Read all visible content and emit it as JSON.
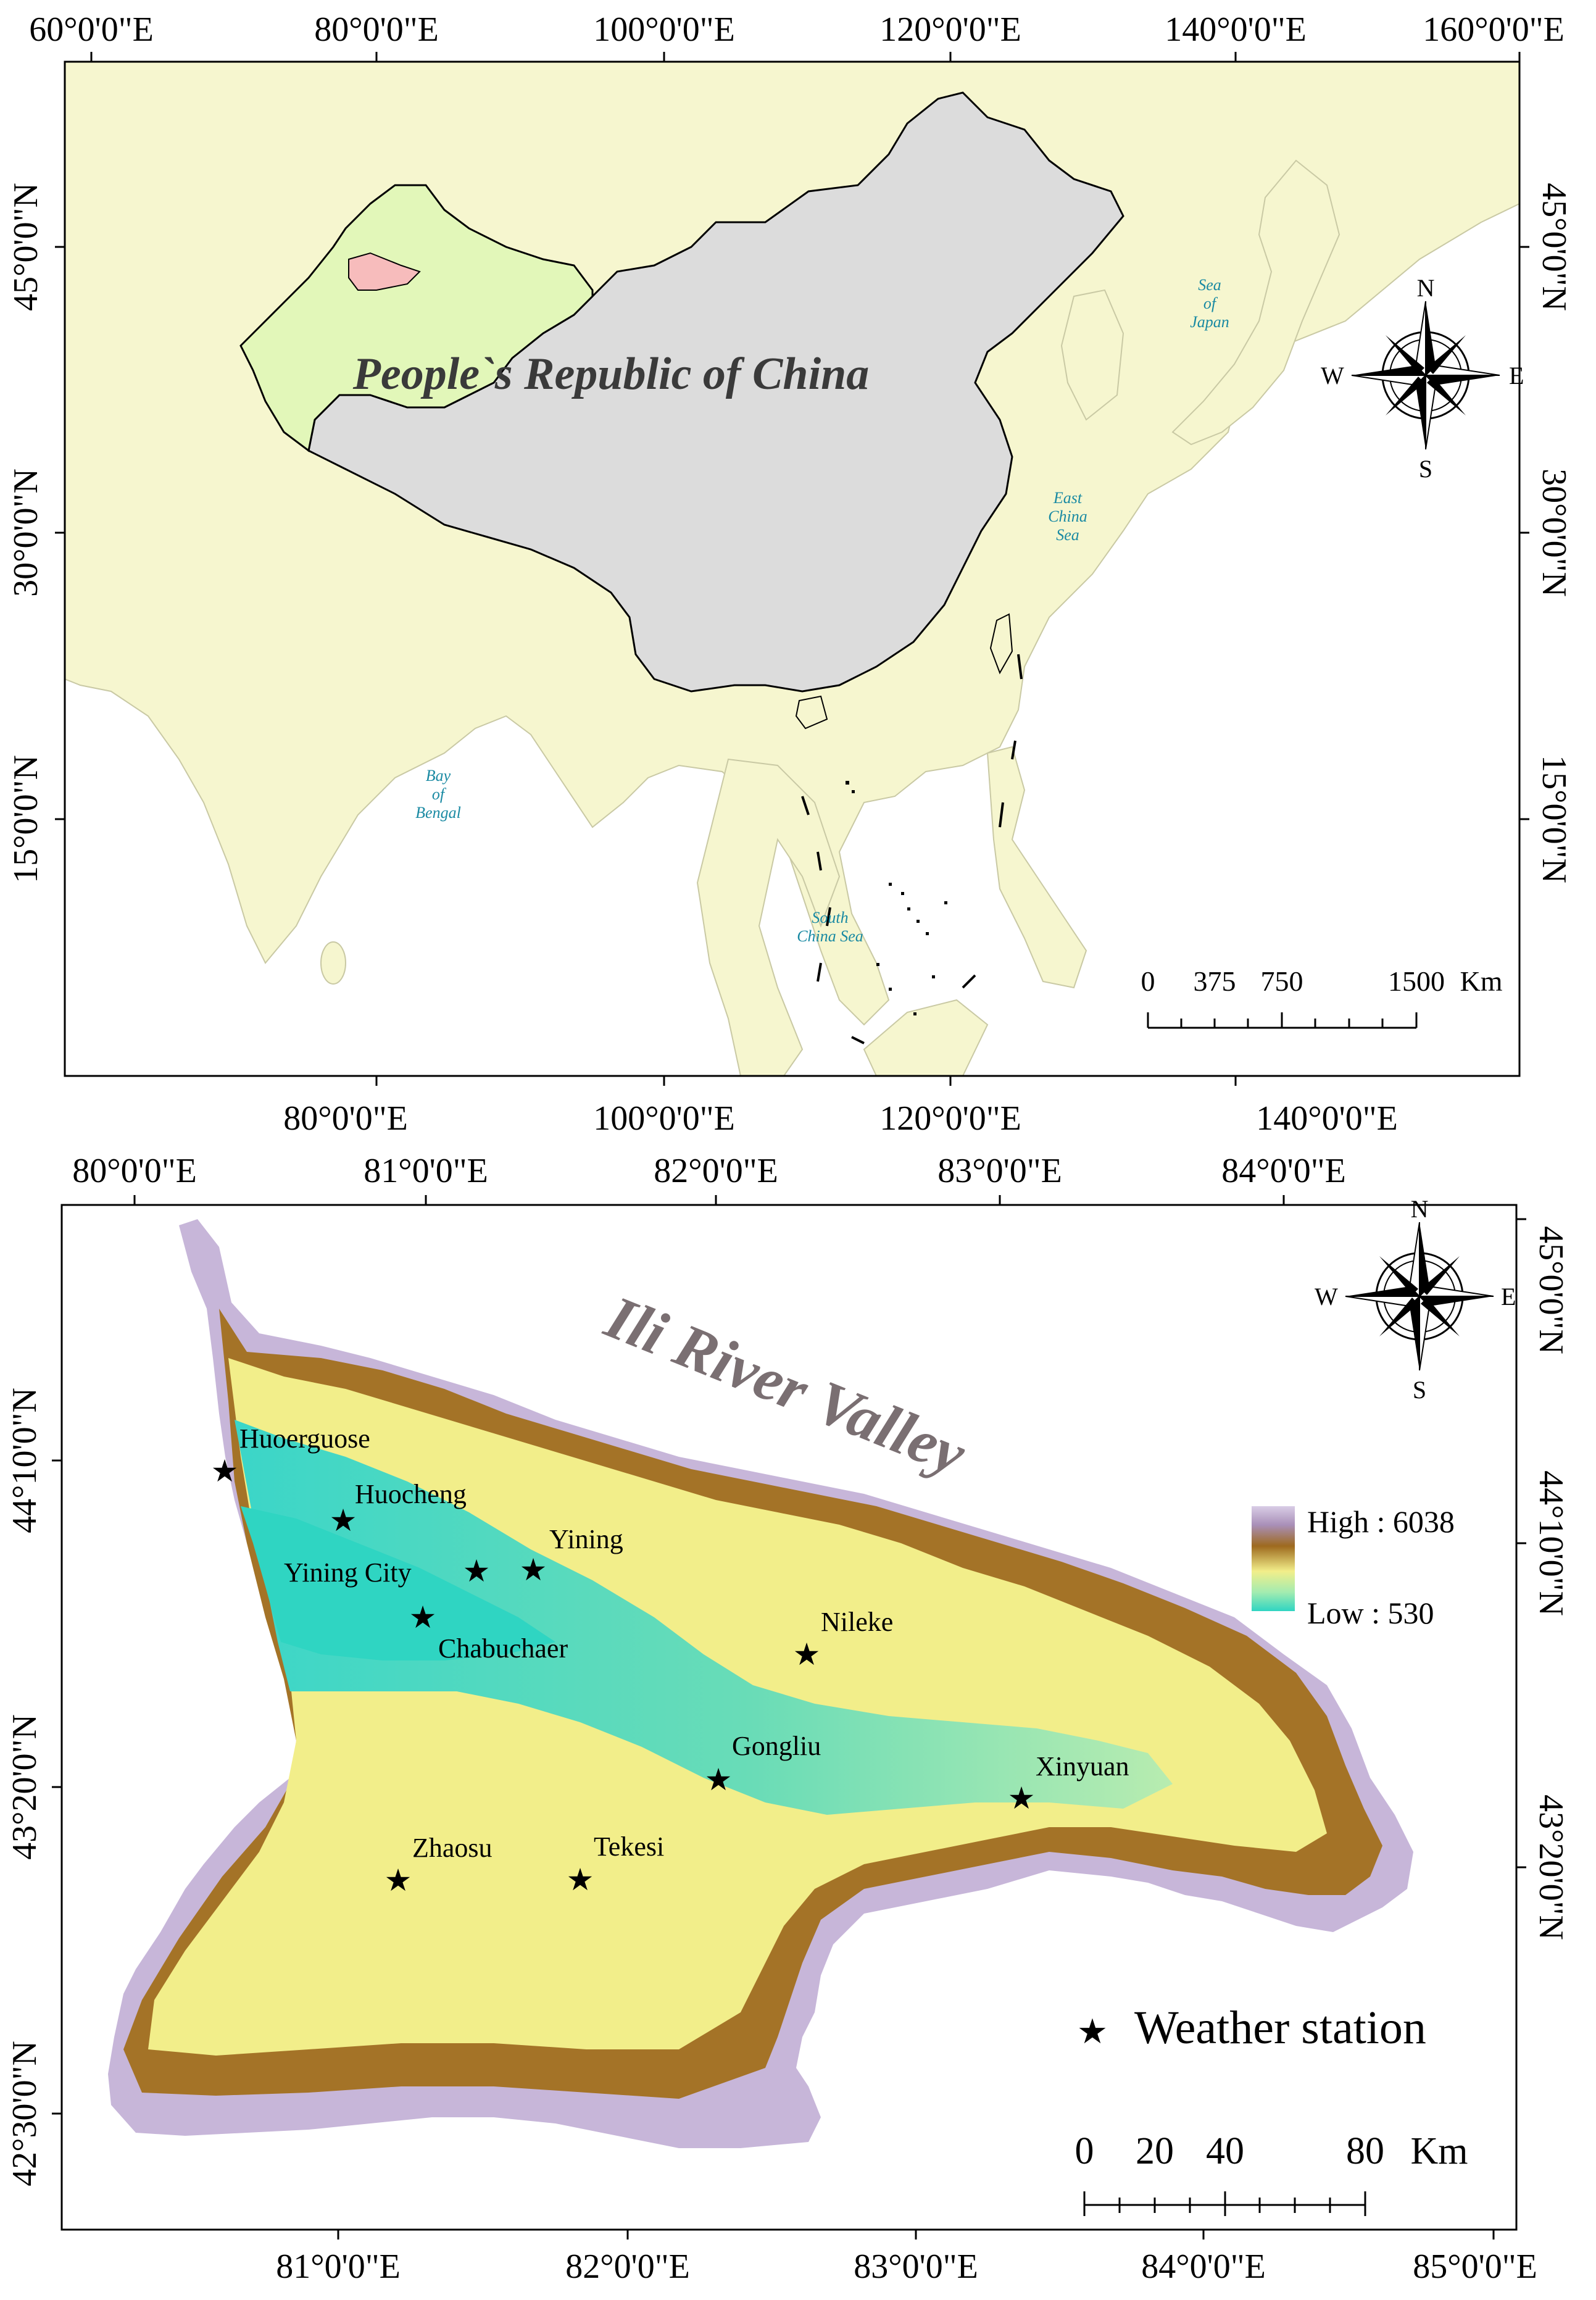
{
  "top_map": {
    "title": "People`s Republic of China",
    "top_ticks": [
      "60°0'0\"E",
      "80°0'0\"E",
      "100°0'0\"E",
      "120°0'0\"E",
      "140°0'0\"E",
      "160°0'0\"E"
    ],
    "bottom_ticks": [
      "80°0'0\"E",
      "100°0'0\"E",
      "120°0'0\"E",
      "140°0'0\"E"
    ],
    "left_ticks": [
      "45°0'0\"N",
      "30°0'0\"N",
      "15°0'0\"N"
    ],
    "right_ticks": [
      "45°0'0\"N",
      "30°0'0\"N",
      "15°0'0\"N"
    ],
    "seas": [
      {
        "lines": [
          "Sea",
          "of",
          "Japan"
        ]
      },
      {
        "lines": [
          "East",
          "China",
          "Sea"
        ]
      },
      {
        "lines": [
          "Bay",
          "of",
          "Bengal"
        ]
      },
      {
        "lines": [
          "South",
          "China Sea"
        ]
      }
    ],
    "scale": {
      "labels": [
        "0",
        "375",
        "750",
        "1500"
      ],
      "unit": "Km"
    },
    "compass": {
      "n": "N",
      "s": "S",
      "e": "E",
      "w": "W"
    }
  },
  "bottom_map": {
    "title": "Ili River Valley",
    "top_ticks": [
      "80°0'0\"E",
      "81°0'0\"E",
      "82°0'0\"E",
      "83°0'0\"E",
      "84°0'0\"E"
    ],
    "bottom_ticks": [
      "81°0'0\"E",
      "82°0'0\"E",
      "83°0'0\"E",
      "84°0'0\"E",
      "85°0'0\"E"
    ],
    "left_ticks": [
      "44°10'0\"N",
      "43°20'0\"N",
      "42°30'0\"N"
    ],
    "right_ticks": [
      "45°0'0\"N",
      "44°10'0\"N",
      "43°20'0\"N"
    ],
    "legend": {
      "high": "High : 6038",
      "low": "Low : 530",
      "station": "Weather station"
    },
    "stations": [
      "Huoerguose",
      "Huocheng",
      "Yining",
      "Yining City",
      "Chabuchaer",
      "Nileke",
      "Gongliu",
      "Xinyuan",
      "Zhaosu",
      "Tekesi"
    ],
    "scale": {
      "labels": [
        "0",
        "20",
        "40",
        "80"
      ],
      "unit": "Km"
    },
    "compass": {
      "n": "N",
      "s": "S",
      "e": "E",
      "w": "W"
    }
  },
  "colors": {
    "land": "#f6f6cf",
    "china": "#dcdcdc",
    "xinjiang": "#e2f7b9",
    "ili": "#f7bcbc",
    "sea_label": "#1a8aa3",
    "title_bottom": "#7a6f72",
    "elev_low": "#2fd5c2",
    "elev_mid": "#f2ee8a",
    "elev_brown": "#9e6a1e",
    "elev_high": "#c7b6d9"
  }
}
